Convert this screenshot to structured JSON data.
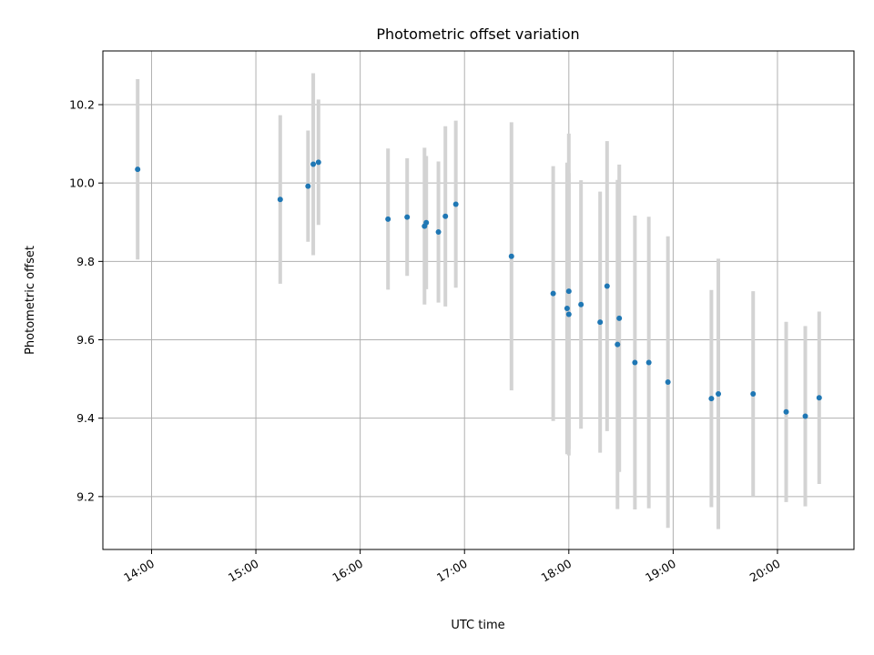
{
  "chart_data": {
    "type": "scatter",
    "title": "Photometric offset variation",
    "xlabel": "UTC time",
    "ylabel": "Photometric offset",
    "grid": true,
    "xlim": [
      "13:32",
      "20:44"
    ],
    "ylim": [
      9.065,
      10.337
    ],
    "x_ticks": [
      "14:00",
      "15:00",
      "16:00",
      "17:00",
      "18:00",
      "19:00",
      "20:00"
    ],
    "y_ticks": [
      "9.2",
      "9.4",
      "9.6",
      "9.8",
      "10.0",
      "10.2"
    ],
    "marker_color": "#1f77b4",
    "errorbar_color": "#d3d3d3",
    "points": [
      {
        "x": "13:52",
        "y": 10.035,
        "err": 0.23
      },
      {
        "x": "15:14",
        "y": 9.958,
        "err": 0.215
      },
      {
        "x": "15:30",
        "y": 9.992,
        "err": 0.142
      },
      {
        "x": "15:33",
        "y": 10.048,
        "err": 0.232
      },
      {
        "x": "15:36",
        "y": 10.053,
        "err": 0.16
      },
      {
        "x": "16:16",
        "y": 9.908,
        "err": 0.18
      },
      {
        "x": "16:27",
        "y": 9.913,
        "err": 0.15
      },
      {
        "x": "16:37",
        "y": 9.89,
        "err": 0.2
      },
      {
        "x": "16:38",
        "y": 9.899,
        "err": 0.17
      },
      {
        "x": "16:45",
        "y": 9.875,
        "err": 0.18
      },
      {
        "x": "16:49",
        "y": 9.915,
        "err": 0.23
      },
      {
        "x": "16:55",
        "y": 9.946,
        "err": 0.213
      },
      {
        "x": "17:27",
        "y": 9.813,
        "err": 0.342
      },
      {
        "x": "17:51",
        "y": 9.718,
        "err": 0.325
      },
      {
        "x": "17:59",
        "y": 9.68,
        "err": 0.372
      },
      {
        "x": "18:00",
        "y": 9.665,
        "err": 0.36
      },
      {
        "x": "18:00",
        "y": 9.724,
        "err": 0.402
      },
      {
        "x": "18:07",
        "y": 9.69,
        "err": 0.317
      },
      {
        "x": "18:18",
        "y": 9.645,
        "err": 0.333
      },
      {
        "x": "18:22",
        "y": 9.737,
        "err": 0.37
      },
      {
        "x": "18:28",
        "y": 9.588,
        "err": 0.42
      },
      {
        "x": "18:29",
        "y": 9.655,
        "err": 0.392
      },
      {
        "x": "18:38",
        "y": 9.542,
        "err": 0.375
      },
      {
        "x": "18:46",
        "y": 9.542,
        "err": 0.372
      },
      {
        "x": "18:57",
        "y": 9.492,
        "err": 0.372
      },
      {
        "x": "19:22",
        "y": 9.45,
        "err": 0.277
      },
      {
        "x": "19:26",
        "y": 9.462,
        "err": 0.345
      },
      {
        "x": "19:46",
        "y": 9.462,
        "err": 0.262
      },
      {
        "x": "20:05",
        "y": 9.416,
        "err": 0.23
      },
      {
        "x": "20:16",
        "y": 9.405,
        "err": 0.23
      },
      {
        "x": "20:24",
        "y": 9.452,
        "err": 0.22
      }
    ]
  }
}
